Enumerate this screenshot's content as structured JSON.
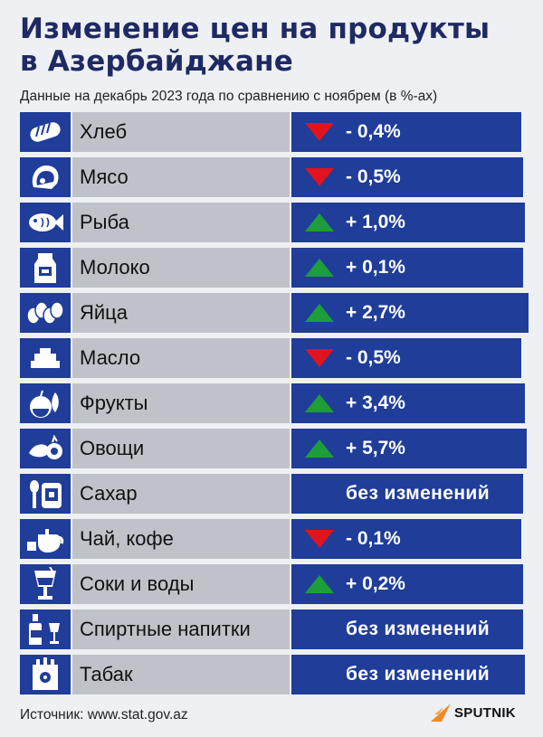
{
  "header": {
    "title_line1": "Изменение цен на продукты",
    "title_line2": "в Азербайджане",
    "subtitle": "Данные на декабрь 2023 года по сравнению с ноябрем (в %-ах)"
  },
  "chart_data": {
    "type": "table",
    "title": "Изменение цен на продукты в Азербайджане",
    "subtitle": "Данные на декабрь 2023 года по сравнению с ноябрем (в %-ах)",
    "unit": "%",
    "rows": [
      {
        "category": "Хлеб",
        "icon": "bread-icon",
        "direction": "down",
        "value": -0.4,
        "label": "- 0,4%"
      },
      {
        "category": "Мясо",
        "icon": "meat-icon",
        "direction": "down",
        "value": -0.5,
        "label": "- 0,5%"
      },
      {
        "category": "Рыба",
        "icon": "fish-icon",
        "direction": "up",
        "value": 1.0,
        "label": "+ 1,0%"
      },
      {
        "category": "Молоко",
        "icon": "milk-icon",
        "direction": "up",
        "value": 0.1,
        "label": "+ 0,1%"
      },
      {
        "category": "Яйца",
        "icon": "eggs-icon",
        "direction": "up",
        "value": 2.7,
        "label": "+ 2,7%"
      },
      {
        "category": "Масло",
        "icon": "butter-icon",
        "direction": "down",
        "value": -0.5,
        "label": "- 0,5%"
      },
      {
        "category": "Фрукты",
        "icon": "fruits-icon",
        "direction": "up",
        "value": 3.4,
        "label": "+ 3,4%"
      },
      {
        "category": "Овощи",
        "icon": "vegetables-icon",
        "direction": "up",
        "value": 5.7,
        "label": "+ 5,7%"
      },
      {
        "category": "Сахар",
        "icon": "sugar-icon",
        "direction": "none",
        "value": 0,
        "label": "без изменений"
      },
      {
        "category": "Чай, кофе",
        "icon": "teapot-icon",
        "direction": "down",
        "value": -0.1,
        "label": "- 0,1%"
      },
      {
        "category": "Соки и воды",
        "icon": "juice-icon",
        "direction": "up",
        "value": 0.2,
        "label": "+ 0,2%"
      },
      {
        "category": "Спиртные напитки",
        "icon": "alcohol-icon",
        "direction": "none",
        "value": 0,
        "label": "без изменений"
      },
      {
        "category": "Табак",
        "icon": "tobacco-icon",
        "direction": "none",
        "value": 0,
        "label": "без изменений"
      }
    ]
  },
  "colors": {
    "row_blue": "#1f3d99",
    "label_grey": "#bfc3c9",
    "up_green": "#1e9e3a",
    "down_red": "#e0141e",
    "title": "#1f2a63"
  },
  "footer": {
    "source": "Источник: www.stat.gov.az",
    "logo_text": "SPUTNIK"
  }
}
